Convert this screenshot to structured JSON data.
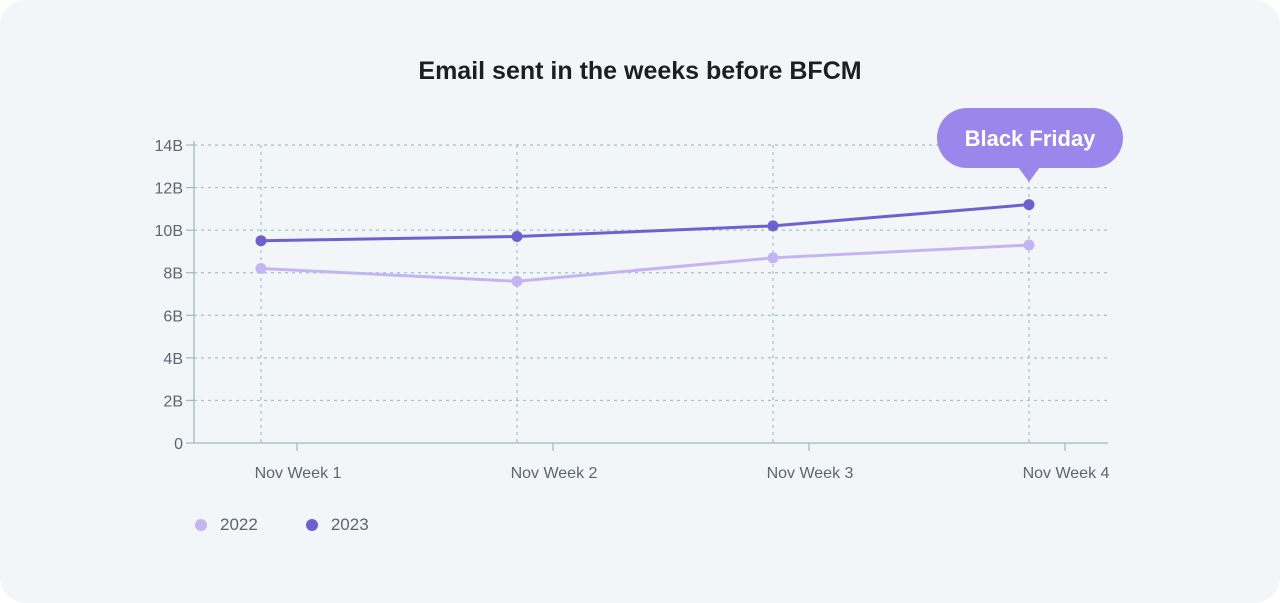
{
  "chart_data": {
    "type": "line",
    "title": "Email sent in the weeks before BFCM",
    "categories": [
      "Nov Week 1",
      "Nov Week 2",
      "Nov Week 3",
      "Nov Week 4"
    ],
    "y_ticks": [
      "0",
      "2B",
      "4B",
      "6B",
      "8B",
      "10B",
      "12B",
      "14B"
    ],
    "ylim": [
      0,
      14
    ],
    "yunit": "B",
    "grid": true,
    "legend_position": "bottom-left",
    "series": [
      {
        "name": "2022",
        "color": "#c4b5f2",
        "values": [
          8.2,
          7.6,
          8.7,
          9.3
        ]
      },
      {
        "name": "2023",
        "color": "#6f60d0",
        "values": [
          9.5,
          9.7,
          10.2,
          11.2
        ]
      }
    ],
    "annotation": {
      "text": "Black Friday",
      "category_index": 3,
      "series_index": 1,
      "color": "#9b86ec"
    }
  }
}
